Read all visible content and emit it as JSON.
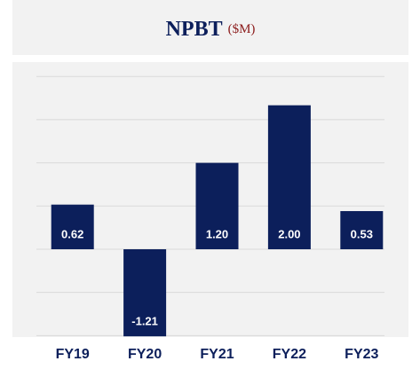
{
  "chart_data": {
    "type": "bar",
    "title": "NPBT",
    "subtitle": "($M)",
    "categories": [
      "FY19",
      "FY20",
      "FY21",
      "FY22",
      "FY23"
    ],
    "values": [
      0.62,
      -1.21,
      1.2,
      2.0,
      0.53
    ],
    "value_labels": [
      "0.62",
      "-1.21",
      "1.20",
      "2.00",
      "0.53"
    ],
    "color": "#0c1f5b",
    "ylim": [
      -1.22,
      2.6
    ],
    "yticks": [
      -1.2,
      -0.6,
      0,
      0.6,
      1.2,
      1.8,
      2.4
    ],
    "grid": true
  }
}
